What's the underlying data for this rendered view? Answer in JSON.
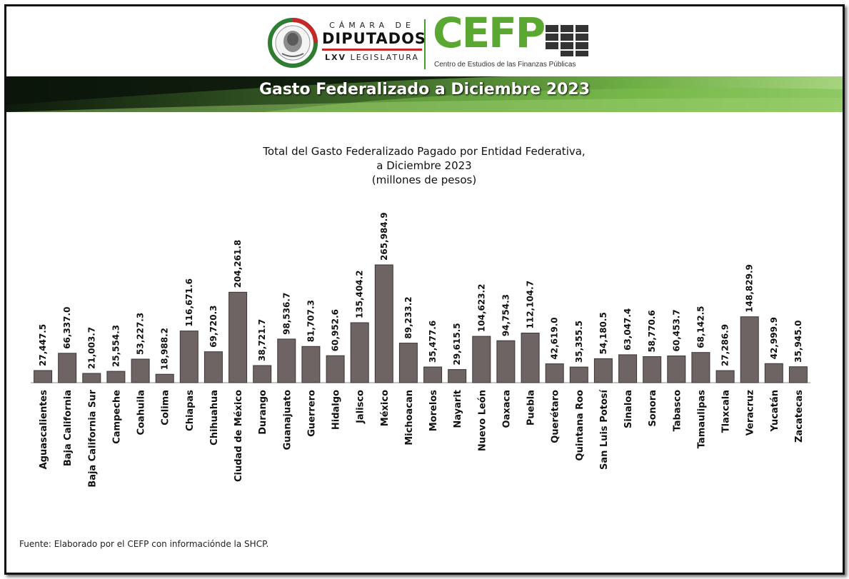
{
  "header": {
    "camara": {
      "line1": "CÁMARA DE",
      "line2": "DIPUTADOS",
      "line3_bold": "LXV",
      "line3_rest": "LEGISLATURA"
    },
    "cefp": {
      "word": "CEFP",
      "subtitle": "Centro de Estudios de las Finanzas Públicas"
    },
    "banner_title": "Gasto Federalizado a Diciembre 2023"
  },
  "colors": {
    "bar": "#6e6464",
    "bar_stroke": "#3a3434",
    "accent_green": "#5aa832",
    "banner_dark": "#1c2a1a"
  },
  "chart_data": {
    "type": "bar",
    "title_lines": [
      "Total del Gasto Federalizado Pagado por Entidad Federativa,",
      "a Diciembre 2023",
      "(millones de pesos)"
    ],
    "categories": [
      "Aguascalientes",
      "Baja California",
      "Baja California Sur",
      "Campeche",
      "Coahuila",
      "Colima",
      "Chiapas",
      "Chihuahua",
      "Ciudad de México",
      "Durango",
      "Guanajuato",
      "Guerrero",
      "Hidalgo",
      "Jalisco",
      "México",
      "Michoacan",
      "Morelos",
      "Nayarit",
      "Nuevo León",
      "Oaxaca",
      "Puebla",
      "Querétaro",
      "Quintana Roo",
      "San Luis Potosí",
      "Sinaloa",
      "Sonora",
      "Tabasco",
      "Tamaulipas",
      "Tlaxcala",
      "Veracruz",
      "Yucatán",
      "Zacatecas"
    ],
    "values": [
      27447.5,
      66337.0,
      21003.7,
      25554.3,
      53227.3,
      18988.2,
      116671.6,
      69720.3,
      204261.8,
      38721.7,
      98536.7,
      81707.3,
      60952.6,
      135404.2,
      265984.9,
      89233.2,
      35477.6,
      29615.5,
      104623.2,
      94754.3,
      112104.7,
      42619.0,
      35355.5,
      54180.5,
      63047.4,
      58770.6,
      60453.7,
      68142.5,
      27286.9,
      148829.9,
      42999.9,
      35945.0
    ],
    "value_labels": [
      "27,447.5",
      "66,337.0",
      "21,003.7",
      "25,554.3",
      "53,227.3",
      "18,988.2",
      "116,671.6",
      "69,720.3",
      "204,261.8",
      "38,721.7",
      "98,536.7",
      "81,707.3",
      "60,952.6",
      "135,404.2",
      "265,984.9",
      "89,233.2",
      "35,477.6",
      "29,615.5",
      "104,623.2",
      "94,754.3",
      "112,104.7",
      "42,619.0",
      "35,355.5",
      "54,180.5",
      "63,047.4",
      "58,770.6",
      "60,453.7",
      "68,142.5",
      "27,286.9",
      "148,829.9",
      "42,999.9",
      "35,945.0"
    ],
    "ylim": [
      0,
      265984.9
    ],
    "grid": false,
    "legend": "none"
  },
  "source": "Fuente: Elaborado por el CEFP con informaciónde la SHCP."
}
